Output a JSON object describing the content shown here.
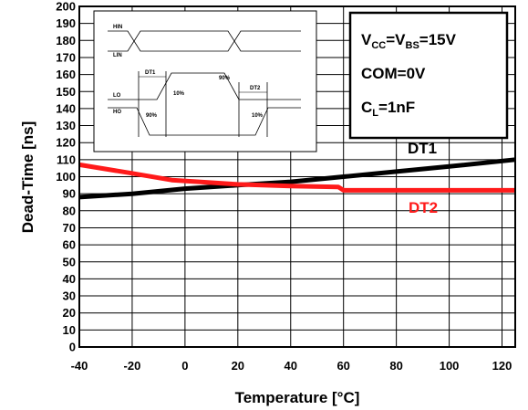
{
  "chart_data": {
    "type": "line",
    "title": "",
    "xlabel": "Temperature [°C]",
    "ylabel": "Dead-Time [ns]",
    "xlim": [
      -40,
      125
    ],
    "ylim": [
      0,
      200
    ],
    "xticks": [
      -40,
      -20,
      0,
      20,
      40,
      60,
      80,
      100,
      120
    ],
    "yticks": [
      0,
      10,
      20,
      30,
      40,
      50,
      60,
      70,
      80,
      90,
      100,
      110,
      120,
      130,
      140,
      150,
      160,
      170,
      180,
      190,
      200
    ],
    "grid": true,
    "series": [
      {
        "name": "DT1",
        "color": "#000000",
        "points": [
          [
            -40,
            88
          ],
          [
            -20,
            90
          ],
          [
            0,
            93
          ],
          [
            20,
            95
          ],
          [
            40,
            97
          ],
          [
            60,
            100
          ],
          [
            80,
            103
          ],
          [
            100,
            106
          ],
          [
            125,
            110
          ]
        ]
      },
      {
        "name": "DT2",
        "color": "#ff1a1a",
        "points": [
          [
            -40,
            107
          ],
          [
            -20,
            102
          ],
          [
            -5,
            98
          ],
          [
            10,
            96.5
          ],
          [
            20,
            95.5
          ],
          [
            40,
            94.5
          ],
          [
            58,
            94
          ],
          [
            60,
            92
          ],
          [
            80,
            92
          ],
          [
            100,
            92
          ],
          [
            125,
            92
          ]
        ]
      }
    ],
    "conditions": {
      "line1": {
        "v1": "V",
        "s1": "CC",
        "eq1": "=V",
        "s2": "BS",
        "eq2": "=15V"
      },
      "line2": "COM=0V",
      "line3": {
        "c": "C",
        "s": "L",
        "eq": "=1nF"
      }
    },
    "timing_inset": {
      "hin": "HIN",
      "lin": "LIN",
      "lo": "LO",
      "ho": "HO",
      "dt1": "DT1",
      "dt2": "DT2",
      "pct10a": "10%",
      "pct90a": "90%",
      "pct90b": "90%",
      "pct10b": "10%"
    }
  }
}
